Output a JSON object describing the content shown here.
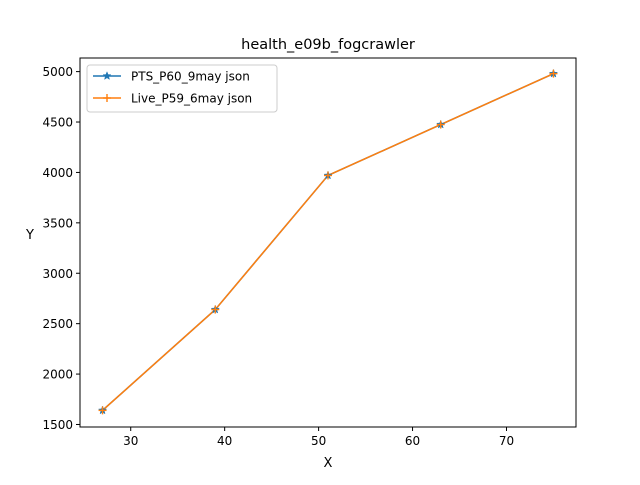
{
  "chart_data": {
    "type": "line",
    "title": "health_e09b_fogcrawler",
    "xlabel": "X",
    "ylabel": "Y",
    "xlim": [
      24.6,
      77.4
    ],
    "ylim": [
      1475,
      5135
    ],
    "xticks": [
      30,
      40,
      50,
      60,
      70
    ],
    "yticks": [
      1500,
      2000,
      2500,
      3000,
      3500,
      4000,
      4500,
      5000
    ],
    "grid": false,
    "legend_position": "upper-left",
    "series": [
      {
        "name": "PTS_P60_9may json",
        "color": "#1f77b4",
        "marker": "star",
        "x": [
          27,
          39,
          51,
          63,
          75
        ],
        "y": [
          1640,
          2640,
          3970,
          4475,
          4980
        ]
      },
      {
        "name": "Live_P59_6may json",
        "color": "#ff7f0e",
        "marker": "plus",
        "x": [
          27,
          39,
          51,
          63,
          75
        ],
        "y": [
          1640,
          2640,
          3970,
          4475,
          4980
        ]
      }
    ]
  }
}
